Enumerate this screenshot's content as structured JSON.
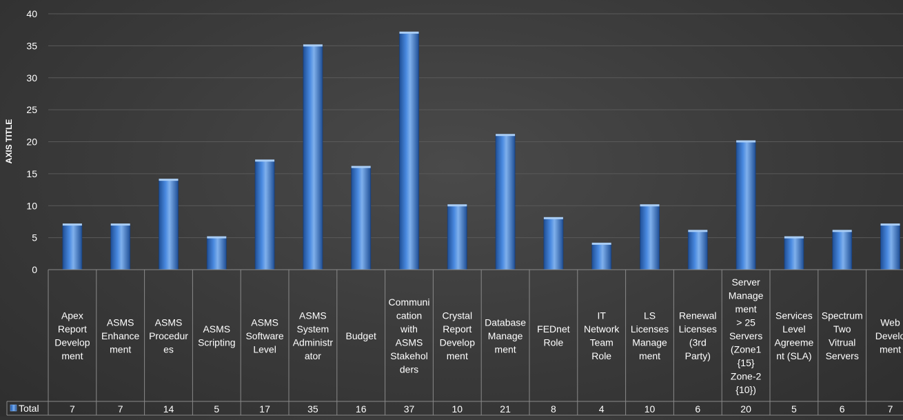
{
  "chart_data": {
    "type": "bar",
    "ylabel": "AXIS TITLE",
    "ylim": [
      0,
      40
    ],
    "yticks": [
      "0",
      "5",
      "10",
      "15",
      "20",
      "25",
      "30",
      "35",
      "40"
    ],
    "grid": true,
    "categories": [
      "Apex Report Development",
      "ASMS Enhancement",
      "ASMS Procedures",
      "ASMS Scripting",
      "ASMS Software Level",
      "ASMS System Administrator",
      "Budget",
      "Communication with ASMS Stakeholders",
      "Crystal Report Development",
      "Database Management",
      "FEDnet Role",
      "IT Network Team Role",
      "LS Licenses Management",
      "Renewal Licenses (3rd Party)",
      "Server Management > 25 Servers (Zone1 {15} Zone-2 {10})",
      "Services Level Agreement (SLA)",
      "Spectrum Two Vitrual Servers",
      "Web Development"
    ],
    "category_lines": [
      [
        "Apex",
        "Report",
        "Develop",
        "ment"
      ],
      [
        "ASMS",
        "Enhance",
        "ment"
      ],
      [
        "ASMS",
        "Procedur",
        "es"
      ],
      [
        "ASMS",
        "Scripting"
      ],
      [
        "ASMS",
        "Software",
        "Level"
      ],
      [
        "ASMS",
        "System",
        "Administr",
        "ator"
      ],
      [
        "Budget"
      ],
      [
        "Communi",
        "cation",
        "with",
        "ASMS",
        "Stakehol",
        "ders"
      ],
      [
        "Crystal",
        "Report",
        "Develop",
        "ment"
      ],
      [
        "Database",
        "Manage",
        "ment"
      ],
      [
        "FEDnet",
        "Role"
      ],
      [
        "IT",
        "Network",
        "Team",
        "Role"
      ],
      [
        "LS",
        "Licenses",
        "Manage",
        "ment"
      ],
      [
        "Renewal",
        "Licenses",
        "(3rd",
        "Party)"
      ],
      [
        "Server",
        "Manage",
        "ment",
        "> 25",
        "Servers",
        "(Zone1",
        "{15}",
        "Zone-2",
        "{10})"
      ],
      [
        "Services",
        "Level",
        "Agreeme",
        "nt (SLA)"
      ],
      [
        "Spectrum",
        "Two",
        "Vitrual",
        "Servers"
      ],
      [
        "Web",
        "Develo",
        "ment"
      ]
    ],
    "series": [
      {
        "name": "Total",
        "values": [
          7,
          7,
          14,
          5,
          17,
          35,
          16,
          37,
          10,
          21,
          8,
          4,
          10,
          6,
          20,
          5,
          6,
          7
        ]
      }
    ],
    "legend": "data-table-row",
    "colors": {
      "bar": "#3f7fd0",
      "bar_dark": "#1f4f96",
      "bar_light": "#7fb0ec",
      "grid": "#5a5a5a",
      "table_line": "#8a8a8a",
      "text": "#ffffff"
    }
  }
}
